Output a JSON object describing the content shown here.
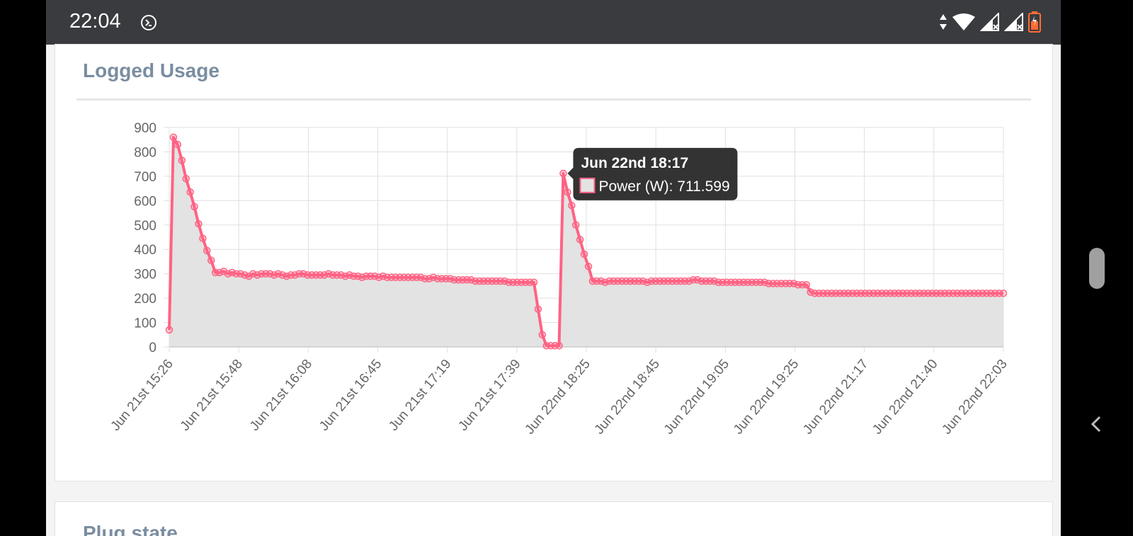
{
  "status_bar": {
    "time": "22:04",
    "icons": [
      "terminal-icon",
      "data-arrows-icon",
      "wifi-icon",
      "signal-x-icon",
      "signal-x-icon",
      "battery-icon"
    ],
    "battery_color": "#ff6b35"
  },
  "card": {
    "title": "Logged Usage"
  },
  "card2": {
    "title": "Plug state"
  },
  "colors": {
    "line": "#ff6384",
    "fill": "#e3e3e3",
    "grid": "#e0e0e0",
    "tooltip_bg": "#222222"
  },
  "tooltip": {
    "title": "Jun 22nd 18:17",
    "body": "Power (W): 711.599"
  },
  "chart_data": {
    "type": "area",
    "title": "",
    "xlabel": "",
    "ylabel": "",
    "ylim": [
      0,
      900
    ],
    "y_ticks": [
      0,
      100,
      200,
      300,
      400,
      500,
      600,
      700,
      800,
      900
    ],
    "x_tick_labels": [
      "Jun 21st 15:26",
      "Jun 21st 15:48",
      "Jun 21st 16:08",
      "Jun 21st 16:45",
      "Jun 21st 17:19",
      "Jun 21st 17:39",
      "Jun 22nd 18:25",
      "Jun 22nd 18:45",
      "Jun 22nd 19:05",
      "Jun 22nd 19:25",
      "Jun 22nd 21:17",
      "Jun 22nd 21:40",
      "Jun 22nd 22:03"
    ],
    "grid": true,
    "series": [
      {
        "name": "Power (W)",
        "values": [
          70,
          860,
          830,
          765,
          690,
          635,
          575,
          505,
          445,
          395,
          355,
          305,
          305,
          310,
          300,
          305,
          300,
          300,
          295,
          290,
          300,
          295,
          300,
          300,
          300,
          295,
          300,
          295,
          290,
          295,
          295,
          300,
          300,
          295,
          295,
          295,
          295,
          295,
          300,
          295,
          295,
          295,
          290,
          295,
          290,
          290,
          285,
          290,
          290,
          290,
          285,
          290,
          285,
          285,
          285,
          285,
          285,
          285,
          285,
          285,
          285,
          280,
          280,
          285,
          280,
          280,
          280,
          280,
          275,
          275,
          275,
          275,
          275,
          270,
          270,
          270,
          270,
          270,
          270,
          270,
          270,
          265,
          265,
          265,
          265,
          265,
          265,
          265,
          155,
          50,
          5,
          5,
          5,
          5,
          711.599,
          635,
          580,
          500,
          440,
          380,
          330,
          270,
          270,
          270,
          265,
          270,
          270,
          270,
          270,
          270,
          270,
          270,
          270,
          270,
          265,
          270,
          270,
          270,
          270,
          270,
          270,
          270,
          270,
          270,
          270,
          275,
          275,
          270,
          270,
          270,
          270,
          265,
          265,
          265,
          265,
          265,
          265,
          265,
          265,
          265,
          265,
          265,
          265,
          260,
          260,
          260,
          260,
          260,
          260,
          260,
          255,
          255,
          255,
          225,
          220,
          220,
          220,
          220,
          220,
          220,
          220,
          220,
          220,
          220,
          220,
          220,
          220,
          220,
          220,
          220,
          220,
          220,
          220,
          220,
          220,
          220,
          220,
          220,
          220,
          220,
          220,
          220,
          220,
          220,
          220,
          220,
          220,
          220,
          220,
          220,
          220,
          220,
          220,
          220,
          220,
          220,
          220,
          220,
          220,
          220
        ]
      }
    ]
  }
}
